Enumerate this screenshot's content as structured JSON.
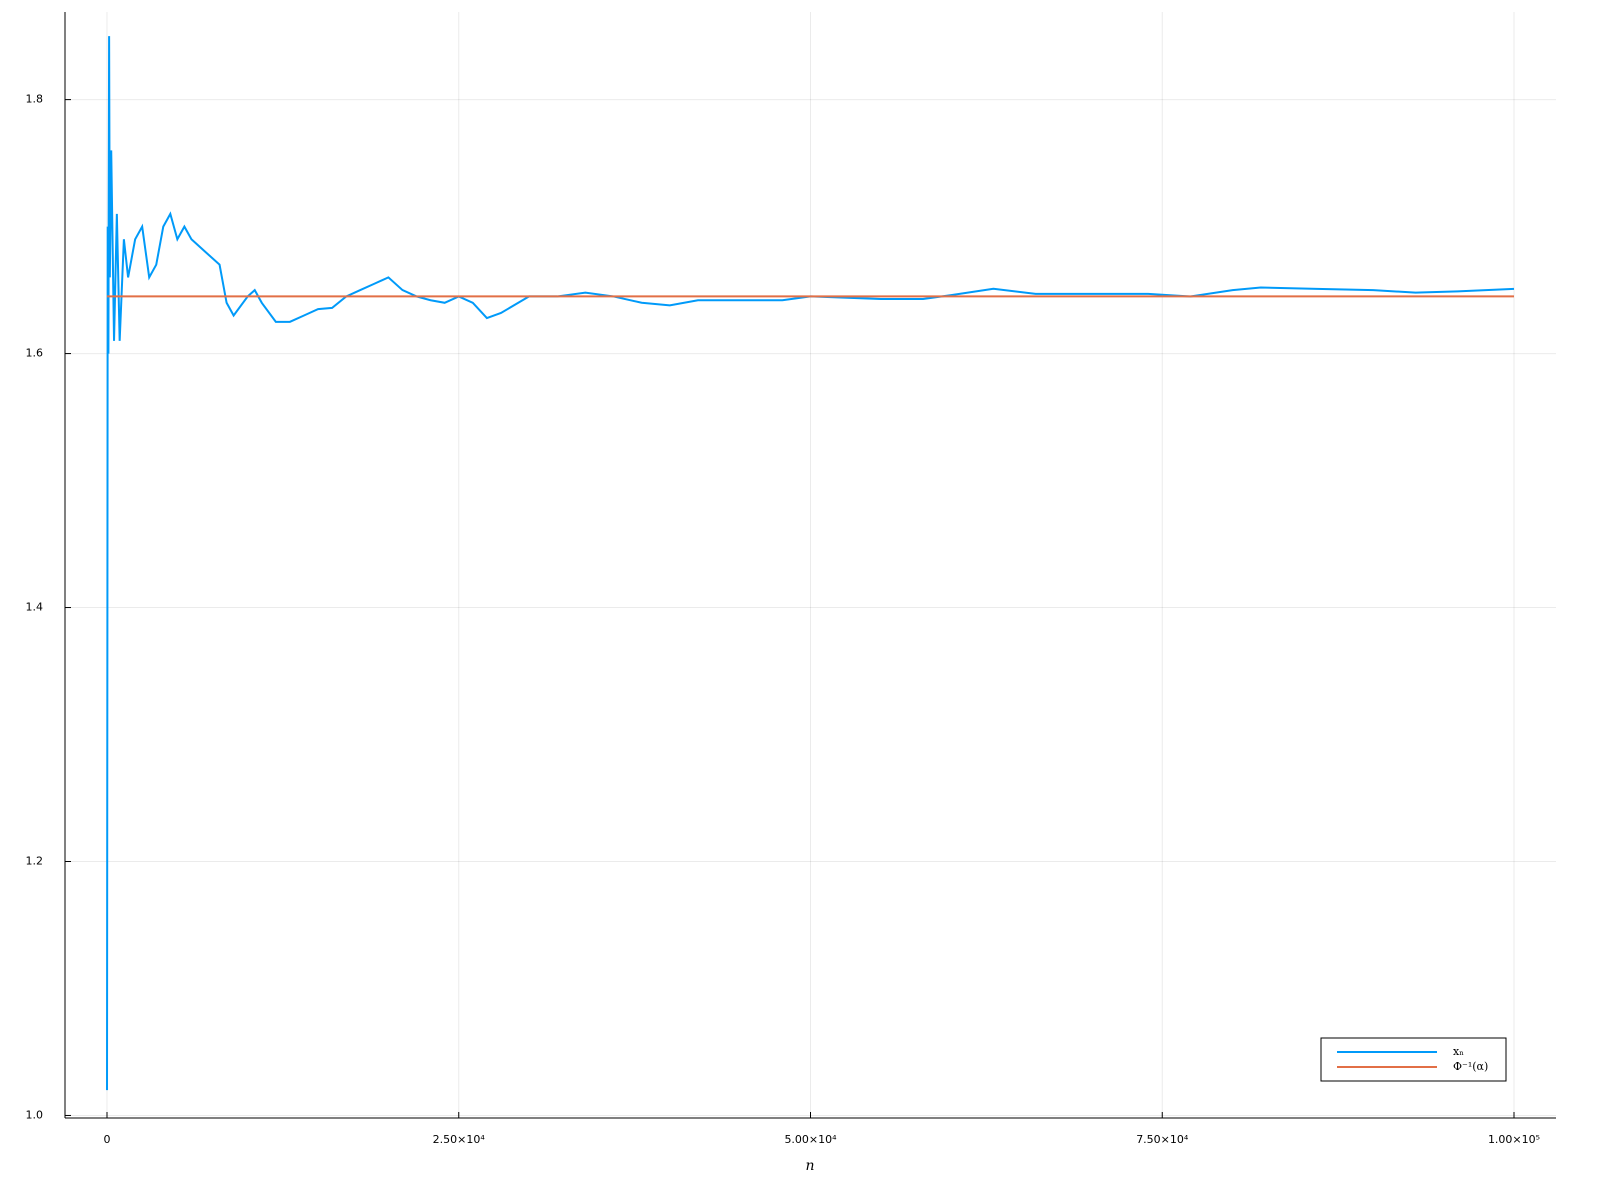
{
  "chart_data": {
    "type": "line",
    "x_label": "n",
    "xlim": [
      -2985,
      102985
    ],
    "ylim": [
      0.998,
      1.869
    ],
    "xticks": [
      0,
      {
        "value": 25000,
        "label": "2.50×10⁴"
      },
      {
        "value": 50000,
        "label": "5.00×10⁴"
      },
      {
        "value": 75000,
        "label": "7.50×10⁴"
      },
      {
        "value": 100000,
        "label": "1.00×10⁵"
      }
    ],
    "yticks": [
      {
        "value": 1,
        "label": "1.0"
      },
      1.2,
      1.4,
      1.6,
      1.8
    ],
    "grid": true,
    "legend": "bottom-right",
    "series": [
      {
        "name": "xₙ",
        "color": "#009af9",
        "x": [
          1,
          50,
          100,
          150,
          200,
          300,
          500,
          700,
          900,
          1200,
          1500,
          2000,
          2500,
          3000,
          3500,
          4000,
          4500,
          5000,
          5500,
          6000,
          7000,
          8000,
          8500,
          9000,
          10000,
          10500,
          11000,
          12000,
          13000,
          14000,
          15000,
          16000,
          17000,
          18000,
          19000,
          20000,
          21000,
          22000,
          23000,
          24000,
          25000,
          26000,
          27000,
          28000,
          30000,
          32000,
          34000,
          36000,
          38000,
          40000,
          42000,
          45000,
          48000,
          50000,
          55000,
          58000,
          60000,
          63000,
          66000,
          70000,
          74000,
          77000,
          80000,
          82000,
          86000,
          90000,
          93000,
          96000,
          100000
        ],
        "values": [
          1.02,
          1.7,
          1.6,
          1.85,
          1.66,
          1.76,
          1.61,
          1.71,
          1.61,
          1.69,
          1.66,
          1.69,
          1.7,
          1.66,
          1.67,
          1.7,
          1.71,
          1.69,
          1.7,
          1.69,
          1.68,
          1.67,
          1.64,
          1.63,
          1.645,
          1.65,
          1.64,
          1.625,
          1.625,
          1.63,
          1.635,
          1.636,
          1.645,
          1.65,
          1.655,
          1.66,
          1.65,
          1.645,
          1.642,
          1.64,
          1.645,
          1.64,
          1.628,
          1.632,
          1.645,
          1.645,
          1.648,
          1.645,
          1.64,
          1.638,
          1.642,
          1.642,
          1.642,
          1.645,
          1.643,
          1.643,
          1.646,
          1.651,
          1.647,
          1.647,
          1.647,
          1.645,
          1.65,
          1.652,
          1.651,
          1.65,
          1.648,
          1.649,
          1.651
        ]
      },
      {
        "name": "Φ⁻¹(α)",
        "color": "#e26f46",
        "x": [
          0,
          100000
        ],
        "values": [
          1.645,
          1.645
        ]
      }
    ]
  }
}
